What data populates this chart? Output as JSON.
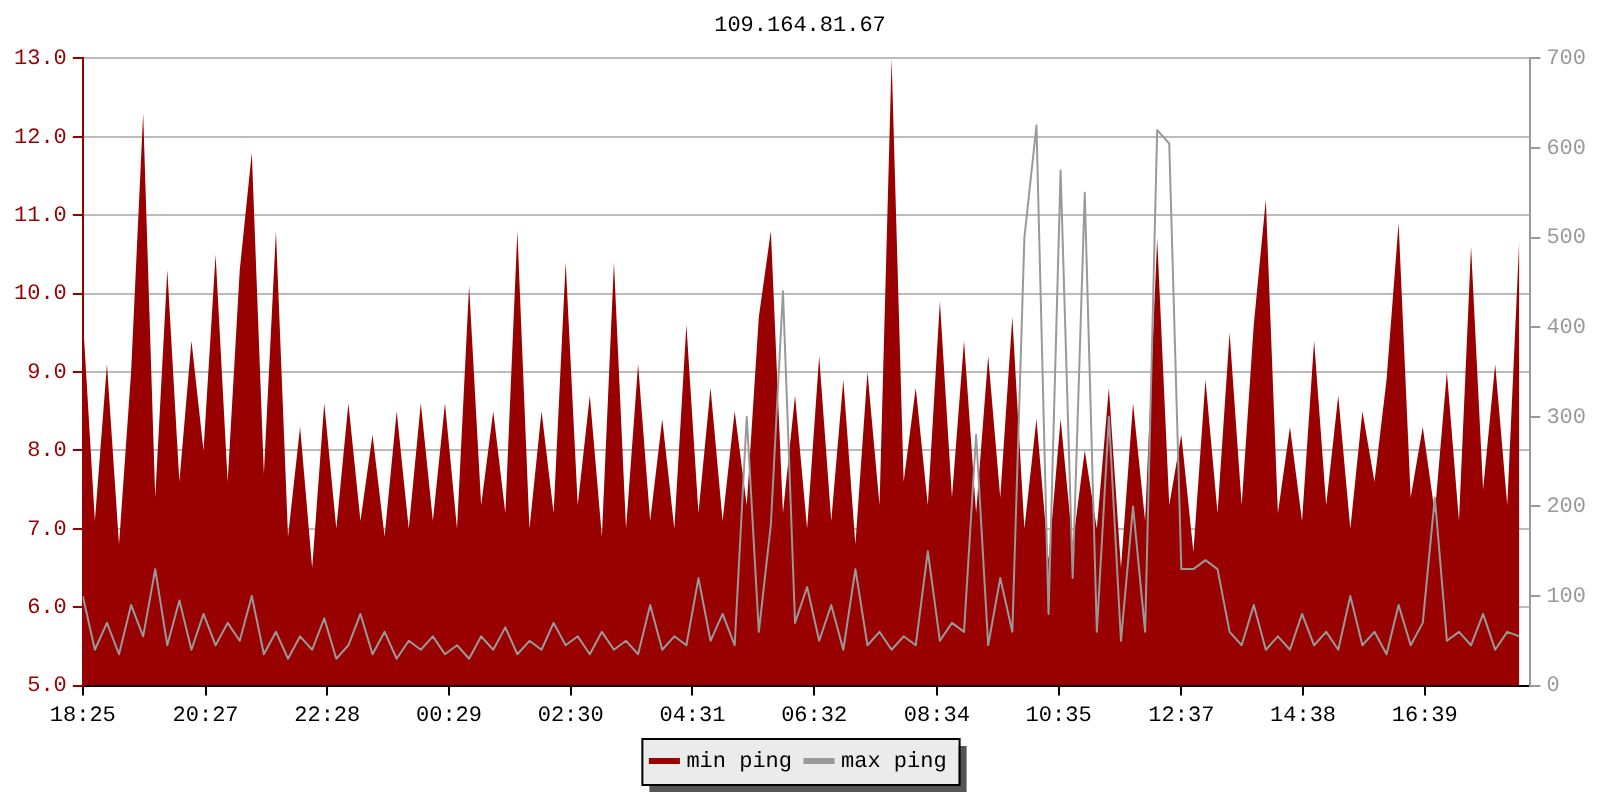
{
  "chart_data": {
    "type": "area",
    "title": "109.164.81.67",
    "x": [
      "--01-01T18:25",
      "--01-01T18:37",
      "--01-01T18:49",
      "--01-01T19:01",
      "--01-01T19:13",
      "--01-01T19:25",
      "--01-01T19:37",
      "--01-01T19:49",
      "--01-01T20:01",
      "--01-01T20:13",
      "--01-01T20:25",
      "--01-01T20:37",
      "--01-01T20:49",
      "--01-01T21:01",
      "--01-01T21:13",
      "--01-01T21:25",
      "--01-01T21:37",
      "--01-01T21:49",
      "--01-01T22:01",
      "--01-01T22:13",
      "--01-01T22:25",
      "--01-01T22:37",
      "--01-01T22:49",
      "--01-01T23:01",
      "--01-01T23:13",
      "--01-01T23:25",
      "--01-01T23:37",
      "--01-01T23:49",
      "--01-02T00:01",
      "--01-02T00:13",
      "--01-02T00:25",
      "--01-02T00:37",
      "--01-02T00:49",
      "--01-02T01:01",
      "--01-02T01:13",
      "--01-02T01:25",
      "--01-02T01:37",
      "--01-02T01:49",
      "--01-02T02:01",
      "--01-02T02:13",
      "--01-02T02:25",
      "--01-02T02:37",
      "--01-02T02:49",
      "--01-02T03:01",
      "--01-02T03:13",
      "--01-02T03:25",
      "--01-02T03:37",
      "--01-02T03:49",
      "--01-02T04:01",
      "--01-02T04:13",
      "--01-02T04:25",
      "--01-02T04:37",
      "--01-02T04:49",
      "--01-02T05:01",
      "--01-02T05:13",
      "--01-02T05:25",
      "--01-02T05:37",
      "--01-02T05:49",
      "--01-02T06:01",
      "--01-02T06:13",
      "--01-02T06:25",
      "--01-02T06:37",
      "--01-02T06:49",
      "--01-02T07:01",
      "--01-02T07:13",
      "--01-02T07:25",
      "--01-02T07:37",
      "--01-02T07:49",
      "--01-02T08:01",
      "--01-02T08:13",
      "--01-02T08:25",
      "--01-02T08:37",
      "--01-02T08:49",
      "--01-02T09:01",
      "--01-02T09:13",
      "--01-02T09:25",
      "--01-02T09:37",
      "--01-02T09:49",
      "--01-02T10:01",
      "--01-02T10:13",
      "--01-02T10:25",
      "--01-02T10:37",
      "--01-02T10:49",
      "--01-02T11:01",
      "--01-02T11:13",
      "--01-02T11:25",
      "--01-02T11:37",
      "--01-02T11:49",
      "--01-02T12:01",
      "--01-02T12:13",
      "--01-02T12:25",
      "--01-02T12:37",
      "--01-02T12:49",
      "--01-02T13:01",
      "--01-02T13:13",
      "--01-02T13:25",
      "--01-02T13:37",
      "--01-02T13:49",
      "--01-02T14:01",
      "--01-02T14:13",
      "--01-02T14:25",
      "--01-02T14:37",
      "--01-02T14:49",
      "--01-02T15:01",
      "--01-02T15:13",
      "--01-02T15:25",
      "--01-02T15:37",
      "--01-02T15:49",
      "--01-02T16:01",
      "--01-02T16:13",
      "--01-02T16:25",
      "--01-02T16:37",
      "--01-02T16:49",
      "--01-02T17:01",
      "--01-02T17:13",
      "--01-02T17:25",
      "--01-02T17:37",
      "--01-02T17:49",
      "--01-02T18:01",
      "--01-02T18:13"
    ],
    "series": [
      {
        "name": "min ping",
        "color": "#990000",
        "values": [
          9.7,
          7.1,
          9.1,
          6.8,
          9.0,
          12.3,
          7.4,
          10.3,
          7.6,
          9.4,
          8.0,
          10.5,
          7.6,
          10.3,
          11.8,
          7.7,
          10.8,
          6.9,
          8.3,
          6.5,
          8.6,
          7.0,
          8.6,
          7.1,
          8.2,
          6.9,
          8.5,
          7.0,
          8.6,
          7.1,
          8.6,
          7.0,
          10.1,
          7.3,
          8.5,
          7.2,
          10.8,
          7.0,
          8.5,
          7.2,
          10.4,
          7.3,
          8.7,
          6.9,
          10.4,
          7.0,
          9.1,
          7.1,
          8.4,
          7.0,
          9.6,
          7.2,
          8.8,
          7.1,
          8.5,
          7.3,
          9.7,
          10.8,
          7.2,
          8.7,
          7.0,
          9.2,
          7.1,
          8.9,
          6.8,
          9.0,
          7.3,
          13.0,
          7.6,
          8.8,
          7.3,
          9.9,
          7.4,
          9.4,
          7.2,
          9.2,
          7.4,
          9.7,
          7.0,
          8.4,
          6.6,
          8.4,
          6.8,
          8.0,
          7.0,
          8.8,
          6.5,
          8.6,
          7.1,
          10.7,
          7.3,
          8.2,
          6.7,
          8.9,
          7.2,
          9.5,
          7.3,
          9.6,
          11.2,
          7.2,
          8.3,
          7.1,
          9.4,
          7.3,
          8.7,
          7.0,
          8.5,
          7.6,
          8.9,
          10.9,
          7.4,
          8.3,
          7.2,
          9.0,
          7.1,
          10.6,
          7.5,
          9.1,
          7.3,
          10.7
        ]
      },
      {
        "name": "max ping",
        "type": "line",
        "axis": "y2",
        "color": "#999999",
        "values": [
          100,
          40,
          70,
          35,
          90,
          55,
          130,
          45,
          95,
          40,
          80,
          45,
          70,
          50,
          100,
          35,
          60,
          30,
          55,
          40,
          75,
          30,
          45,
          80,
          35,
          60,
          30,
          50,
          40,
          55,
          35,
          45,
          30,
          55,
          40,
          65,
          35,
          50,
          40,
          70,
          45,
          55,
          35,
          60,
          40,
          50,
          35,
          90,
          40,
          55,
          45,
          120,
          50,
          80,
          45,
          300,
          60,
          180,
          440,
          70,
          110,
          50,
          90,
          40,
          130,
          45,
          60,
          40,
          55,
          45,
          150,
          50,
          70,
          60,
          280,
          45,
          120,
          60,
          500,
          625,
          80,
          575,
          120,
          550,
          60,
          300,
          50,
          200,
          60,
          620,
          605,
          130,
          130,
          140,
          130,
          60,
          45,
          90,
          40,
          55,
          40,
          80,
          45,
          60,
          40,
          100,
          45,
          60,
          35,
          90,
          45,
          70,
          210,
          50,
          60,
          45,
          80,
          40,
          60,
          55
        ]
      }
    ],
    "xlim": [
      "--01-01T18:25",
      "--01-02T18:24"
    ],
    "xticks": [
      {
        "value": "--01-01T18:25",
        "label": "18:25"
      },
      {
        "value": "--01-01T20:27",
        "label": "20:27"
      },
      {
        "value": "--01-01T22:28",
        "label": "22:28"
      },
      {
        "value": "--01-02T00:29",
        "label": "00:29"
      },
      {
        "value": "--01-02T02:30",
        "label": "02:30"
      },
      {
        "value": "--01-02T04:31",
        "label": "04:31"
      },
      {
        "value": "--01-02T06:32",
        "label": "06:32"
      },
      {
        "value": "--01-02T08:34",
        "label": "08:34"
      },
      {
        "value": "--01-02T10:35",
        "label": "10:35"
      },
      {
        "value": "--01-02T12:37",
        "label": "12:37"
      },
      {
        "value": "--01-02T14:38",
        "label": "14:38"
      },
      {
        "value": "--01-02T16:39",
        "label": "16:39"
      }
    ],
    "ylim": [
      5,
      13
    ],
    "yticks": [
      {
        "value": 5,
        "label": "5.0"
      },
      {
        "value": 6,
        "label": "6.0"
      },
      {
        "value": 7,
        "label": "7.0"
      },
      {
        "value": 8,
        "label": "8.0"
      },
      {
        "value": 9,
        "label": "9.0"
      },
      {
        "value": 10,
        "label": "10.0"
      },
      {
        "value": 11,
        "label": "11.0"
      },
      {
        "value": 12,
        "label": "12.0"
      },
      {
        "value": 13,
        "label": "13.0"
      }
    ],
    "y2lim": [
      0,
      700
    ],
    "y2ticks": [
      0,
      100,
      200,
      300,
      400,
      500,
      600,
      700
    ],
    "grid": "y",
    "legend": "bottom",
    "marker": "none",
    "line_style": "solid"
  }
}
